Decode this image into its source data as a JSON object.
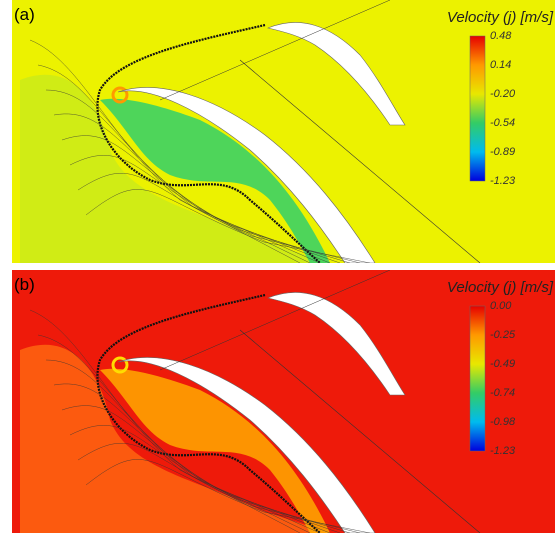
{
  "panels": [
    {
      "label": "(a)",
      "colorbar": {
        "title": "Velocity (j) [m/s]",
        "ticks": [
          "0.48",
          "0.14",
          "-0.20",
          "-0.54",
          "-0.89",
          "-1.23"
        ]
      }
    },
    {
      "label": "(b)",
      "colorbar": {
        "title": "Velocity (j) [m/s]",
        "ticks": [
          "0.00",
          "-0.25",
          "-0.49",
          "-0.74",
          "-0.98",
          "-1.23"
        ]
      }
    }
  ]
}
